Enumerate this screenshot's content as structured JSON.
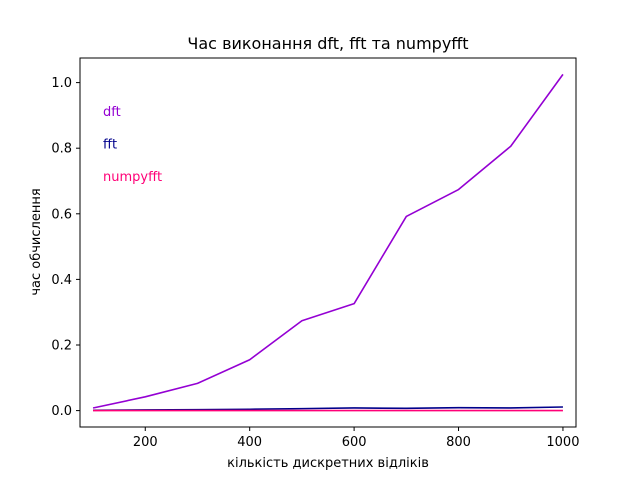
{
  "chart_data": {
    "type": "line",
    "title": "Час виконання dft, fft та numpyfft",
    "xlabel": "кількість дискретних відліків",
    "ylabel": "час обчислення",
    "xlim": [
      75,
      1025
    ],
    "ylim": [
      -0.05,
      1.075
    ],
    "xticks": [
      200,
      400,
      600,
      800,
      1000
    ],
    "yticks": [
      0.0,
      0.2,
      0.4,
      0.6,
      0.8,
      1.0
    ],
    "xtick_labels": [
      "200",
      "400",
      "600",
      "800",
      "1000"
    ],
    "ytick_labels": [
      "0.0",
      "0.2",
      "0.4",
      "0.6",
      "0.8",
      "1.0"
    ],
    "grid": false,
    "legend_position": "upper-left",
    "x": [
      100,
      200,
      300,
      400,
      500,
      600,
      700,
      800,
      900,
      1000
    ],
    "series": [
      {
        "name": "dft",
        "color": "#9400d3",
        "values": [
          0.008,
          0.042,
          0.083,
          0.155,
          0.274,
          0.326,
          0.592,
          0.674,
          0.806,
          1.025
        ]
      },
      {
        "name": "fft",
        "color": "#00008b",
        "values": [
          0.001,
          0.002,
          0.003,
          0.004,
          0.006,
          0.008,
          0.007,
          0.009,
          0.008,
          0.011
        ]
      },
      {
        "name": "numpyfft",
        "color": "#ff0077",
        "values": [
          0.0,
          0.0,
          0.0,
          0.0,
          0.0,
          0.0,
          0.0,
          0.0,
          0.0,
          0.0
        ]
      }
    ]
  }
}
